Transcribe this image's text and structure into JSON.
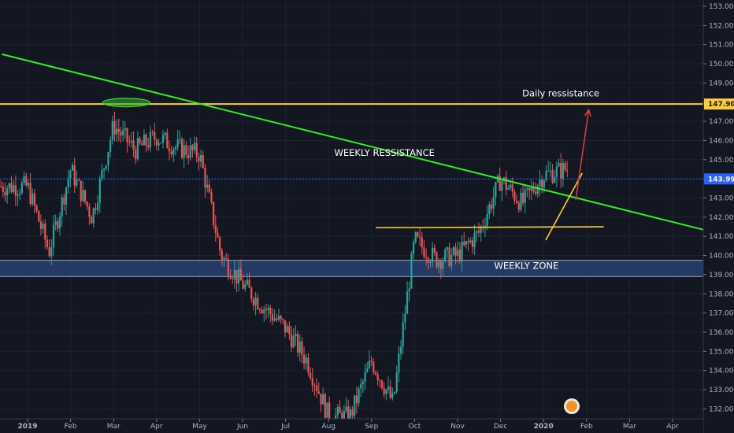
{
  "chart_data": {
    "type": "candlestick",
    "instrument_note": "",
    "y_axis": {
      "min": 131.6,
      "max": 153.3,
      "ticks": [
        "153.000",
        "152.000",
        "151.000",
        "150.000",
        "149.000",
        "148.000",
        "147.000",
        "146.000",
        "145.000",
        "144.000",
        "143.000",
        "142.000",
        "141.000",
        "140.000",
        "139.000",
        "138.000",
        "137.000",
        "136.000",
        "135.000",
        "134.000",
        "133.000",
        "132.000"
      ],
      "price_tags": [
        {
          "label": "147.901",
          "value": 147.901,
          "color": "#ffcc33"
        },
        {
          "label": "143.995",
          "value": 143.995,
          "color": "#2962ff"
        }
      ]
    },
    "x_axis": {
      "ticks": [
        {
          "label": "2019",
          "bold": true,
          "t": 0
        },
        {
          "label": "Feb",
          "bold": false,
          "t": 1
        },
        {
          "label": "Mar",
          "bold": false,
          "t": 2
        },
        {
          "label": "Apr",
          "bold": false,
          "t": 3
        },
        {
          "label": "May",
          "bold": false,
          "t": 4
        },
        {
          "label": "Jun",
          "bold": false,
          "t": 5
        },
        {
          "label": "Jul",
          "bold": false,
          "t": 6
        },
        {
          "label": "Aug",
          "bold": false,
          "t": 7
        },
        {
          "label": "Sep",
          "bold": false,
          "t": 8
        },
        {
          "label": "Oct",
          "bold": false,
          "t": 9
        },
        {
          "label": "Nov",
          "bold": false,
          "t": 10
        },
        {
          "label": "Dec",
          "bold": false,
          "t": 11
        },
        {
          "label": "2020",
          "bold": true,
          "t": 12
        },
        {
          "label": "Feb",
          "bold": false,
          "t": 13
        },
        {
          "label": "Mar",
          "bold": false,
          "t": 14
        },
        {
          "label": "Apr",
          "bold": false,
          "t": 15
        }
      ]
    },
    "price_path_months": [
      0,
      0.5,
      1.0,
      1.5,
      2.0,
      2.5,
      3.0,
      3.5,
      4.0,
      4.5,
      5.0,
      5.5,
      6.0,
      6.5,
      7.0,
      7.5,
      8.0,
      8.5,
      9.0,
      9.5,
      10.0,
      10.5,
      11.0,
      11.5,
      12.0,
      12.5
    ],
    "price_path_values": [
      143.6,
      140.2,
      144.5,
      142.0,
      146.8,
      145.5,
      146.2,
      145.6,
      145.3,
      140.0,
      138.5,
      137.3,
      136.2,
      134.5,
      131.6,
      131.6,
      134.5,
      132.3,
      140.8,
      139.8,
      140.0,
      141.2,
      144.0,
      142.7,
      144.2,
      144.5
    ],
    "annotations": [
      {
        "text": "Daily ressistance",
        "month": 12.4,
        "price": 148.3
      },
      {
        "text": "WEEKLY RESSISTANCE",
        "month": 8.3,
        "price": 145.2
      },
      {
        "text": "WEEKLY ZONE",
        "month": 11.6,
        "price": 139.3
      }
    ],
    "horizontal_lines": [
      {
        "label": "Daily resistance",
        "price": 147.901,
        "color": "#ffcc33"
      },
      {
        "label": "Current price",
        "price": 143.995,
        "color": "#2962ff"
      }
    ],
    "zones": [
      {
        "label": "Weekly zone",
        "price_top": 139.75,
        "price_bottom": 138.9,
        "color": "#2a3f6e"
      }
    ],
    "trendlines": [
      {
        "label": "Weekly resistance trendline",
        "from": [
          -0.6,
          150.5
        ],
        "to": [
          15.8,
          141.3
        ],
        "color": "#33ee22"
      },
      {
        "label": "Support line",
        "from": [
          8.1,
          141.45
        ],
        "to": [
          13.4,
          141.5
        ],
        "color": "#ffcc33"
      },
      {
        "label": "Rising trendline",
        "from": [
          12.05,
          140.8
        ],
        "to": [
          12.9,
          144.3
        ],
        "color": "#ffcc33"
      }
    ],
    "projection_arrow": {
      "from": [
        12.75,
        142.9
      ],
      "to": [
        13.05,
        147.6
      ],
      "color": "#e23d3d"
    },
    "highlight_ellipse": {
      "center": [
        2.3,
        147.98
      ],
      "rx_months": 0.55,
      "ry_price": 0.22,
      "color": "#2fae2f"
    },
    "colors": {
      "background": "#131722",
      "up": "#26a69a",
      "down": "#ef5350",
      "grid": "#1e2230",
      "axis_text": "#b2b5be"
    }
  }
}
